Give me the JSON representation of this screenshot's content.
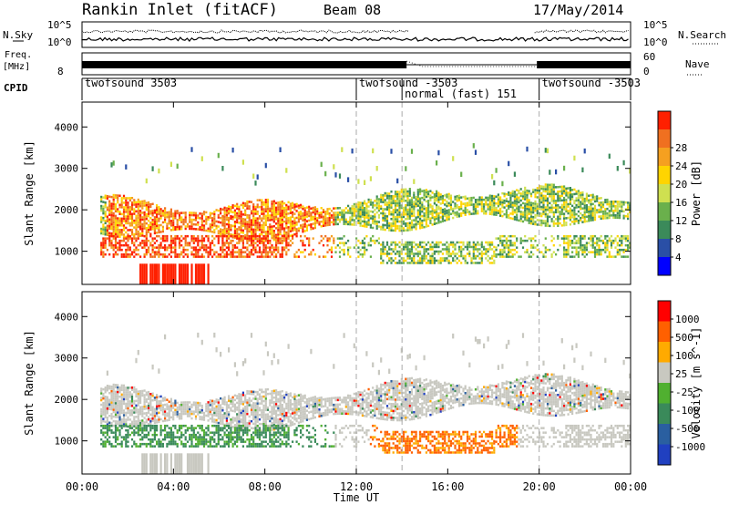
{
  "header": {
    "station": "Rankin Inlet (fitACF)",
    "beam": "Beam 08",
    "date": "17/May/2014"
  },
  "top_panel": {
    "left_label": "N.Sky",
    "right_label": "N.Search",
    "tick_top": "10^5",
    "tick_bottom": "10^0"
  },
  "freq_panel": {
    "left_label_1": "Freq.",
    "left_label_2": "[MHz]",
    "left_tick": "8",
    "right_label": "Nave",
    "right_tick_top": "60",
    "right_tick_bottom": "0"
  },
  "cpid": {
    "label": "CPID",
    "segments": [
      {
        "start": 0,
        "end": 12,
        "label": "twofsound 3503"
      },
      {
        "start": 12,
        "end": 14,
        "label": "twofsound -3503"
      },
      {
        "start": 14,
        "end": 20,
        "label": "normal (fast) 151"
      },
      {
        "start": 20,
        "end": 24,
        "label": "twofsound -3503"
      }
    ]
  },
  "colors": {
    "power": [
      "#0000ff",
      "#2a4fa6",
      "#3b8a5a",
      "#6ab04c",
      "#cfe050",
      "#ffd400",
      "#f5a020",
      "#f07020",
      "#ff2000"
    ],
    "velocity": [
      "#ff0000",
      "#ff6000",
      "#ffaa00",
      "#c8c8c0",
      "#50b030",
      "#3a8a5a",
      "#2a5fa0",
      "#2040c0"
    ]
  },
  "chart_data": [
    {
      "type": "heatmap",
      "title": "",
      "ylabel": "Slant Range [km]",
      "xlabel": "",
      "x_ticks": [
        "00:00",
        "04:00",
        "08:00",
        "12:00",
        "16:00",
        "20:00",
        "00:00"
      ],
      "y_ticks": [
        1000,
        2000,
        3000,
        4000
      ],
      "ylim": [
        200,
        4600
      ],
      "xlim": [
        0,
        24
      ],
      "colorbar": {
        "label": "Power [dB]",
        "ticks": [
          "4",
          "8",
          "12",
          "16",
          "20",
          "24",
          "28"
        ]
      }
    },
    {
      "type": "heatmap",
      "title": "",
      "ylabel": "Slant Range [km]",
      "xlabel": "Time UT",
      "x_ticks": [
        "00:00",
        "04:00",
        "08:00",
        "12:00",
        "16:00",
        "20:00",
        "00:00"
      ],
      "y_ticks": [
        1000,
        2000,
        3000,
        4000
      ],
      "ylim": [
        200,
        4600
      ],
      "xlim": [
        0,
        24
      ],
      "colorbar": {
        "label": "Velocity [m s^-1]",
        "ticks": [
          "1000",
          "500",
          "100",
          "25",
          "-25",
          "-100",
          "-500",
          "-1000"
        ]
      }
    }
  ]
}
